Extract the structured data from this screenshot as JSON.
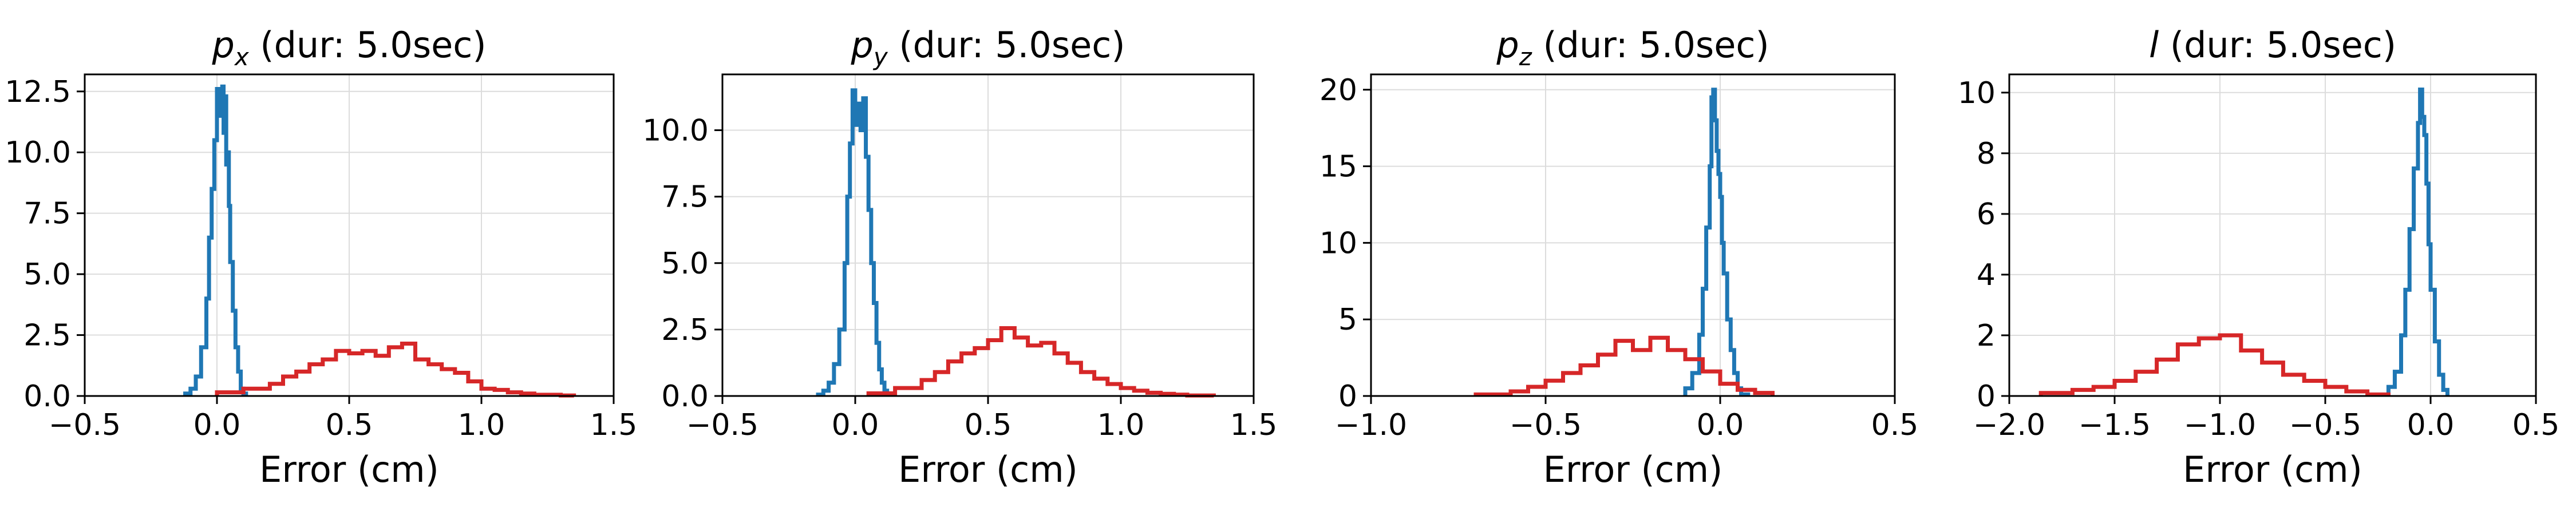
{
  "chart_data": [
    {
      "type": "histogram",
      "title_var": "p",
      "title_sub": "x",
      "title_rest": " (dur: 5.0sec)",
      "xlabel": "Error (cm)",
      "ylabel": "",
      "xlim": [
        -0.5,
        1.5
      ],
      "ylim": [
        0,
        13.2
      ],
      "xticks": [
        -0.5,
        0.0,
        0.5,
        1.0,
        1.5
      ],
      "xtick_labels": [
        "−0.5",
        "0.0",
        "0.5",
        "1.0",
        "1.5"
      ],
      "yticks": [
        0,
        2.5,
        5.0,
        7.5,
        10.0,
        12.5
      ],
      "ytick_labels": [
        "0.0",
        "2.5",
        "5.0",
        "7.5",
        "10.0",
        "12.5"
      ],
      "grid": true,
      "series": [
        {
          "color": "#1f77b4",
          "edges": [
            -0.12,
            -0.1,
            -0.08,
            -0.06,
            -0.04,
            -0.03,
            -0.02,
            -0.01,
            0.0,
            0.01,
            0.02,
            0.025,
            0.03,
            0.035,
            0.04,
            0.045,
            0.05,
            0.06,
            0.07,
            0.08,
            0.09,
            0.1,
            0.11
          ],
          "values": [
            0.1,
            0.3,
            0.8,
            2.0,
            4.0,
            6.5,
            8.5,
            10.5,
            12.6,
            11.5,
            12.7,
            10.8,
            12.3,
            9.5,
            10.0,
            7.8,
            5.5,
            3.5,
            2.0,
            1.0,
            0.3,
            0.1
          ]
        },
        {
          "color": "#d62728",
          "edges": [
            0.0,
            0.1,
            0.2,
            0.25,
            0.3,
            0.35,
            0.4,
            0.45,
            0.5,
            0.55,
            0.6,
            0.65,
            0.7,
            0.75,
            0.8,
            0.85,
            0.9,
            0.95,
            1.0,
            1.05,
            1.1,
            1.15,
            1.2,
            1.3,
            1.35
          ],
          "values": [
            0.15,
            0.3,
            0.5,
            0.8,
            1.0,
            1.3,
            1.5,
            1.85,
            1.75,
            1.85,
            1.65,
            2.0,
            2.15,
            1.5,
            1.3,
            1.1,
            0.95,
            0.6,
            0.3,
            0.25,
            0.15,
            0.1,
            0.05,
            0.02
          ]
        }
      ]
    },
    {
      "type": "histogram",
      "title_var": "p",
      "title_sub": "y",
      "title_rest": " (dur: 5.0sec)",
      "xlabel": "Error (cm)",
      "ylabel": "",
      "xlim": [
        -0.5,
        1.5
      ],
      "ylim": [
        0,
        12.1
      ],
      "xticks": [
        -0.5,
        0.0,
        0.5,
        1.0,
        1.5
      ],
      "xtick_labels": [
        "−0.5",
        "0.0",
        "0.5",
        "1.0",
        "1.5"
      ],
      "yticks": [
        0,
        2.5,
        5.0,
        7.5,
        10.0
      ],
      "ytick_labels": [
        "0.0",
        "2.5",
        "5.0",
        "7.5",
        "10.0"
      ],
      "grid": true,
      "series": [
        {
          "color": "#1f77b4",
          "edges": [
            -0.14,
            -0.12,
            -0.1,
            -0.08,
            -0.06,
            -0.04,
            -0.03,
            -0.02,
            -0.01,
            0.0,
            0.01,
            0.02,
            0.03,
            0.04,
            0.05,
            0.06,
            0.07,
            0.08,
            0.09,
            0.1,
            0.11,
            0.12,
            0.14
          ],
          "values": [
            0.05,
            0.2,
            0.5,
            1.2,
            2.5,
            5.0,
            7.5,
            9.5,
            11.5,
            10.2,
            11.0,
            10.0,
            11.2,
            9.0,
            7.0,
            5.0,
            3.5,
            2.0,
            1.0,
            0.5,
            0.2,
            0.05
          ]
        },
        {
          "color": "#d62728",
          "edges": [
            0.05,
            0.15,
            0.25,
            0.3,
            0.35,
            0.4,
            0.45,
            0.5,
            0.55,
            0.6,
            0.65,
            0.7,
            0.75,
            0.8,
            0.85,
            0.9,
            0.95,
            1.0,
            1.05,
            1.1,
            1.15,
            1.2,
            1.25,
            1.35
          ],
          "values": [
            0.1,
            0.3,
            0.6,
            0.9,
            1.3,
            1.6,
            1.8,
            2.1,
            2.55,
            2.2,
            1.9,
            2.0,
            1.6,
            1.25,
            0.9,
            0.65,
            0.45,
            0.3,
            0.2,
            0.12,
            0.08,
            0.05,
            0.02
          ]
        }
      ]
    },
    {
      "type": "histogram",
      "title_var": "p",
      "title_sub": "z",
      "title_rest": " (dur: 5.0sec)",
      "xlabel": "Error (cm)",
      "ylabel": "",
      "xlim": [
        -1.0,
        0.5
      ],
      "ylim": [
        0,
        21
      ],
      "xticks": [
        -1.0,
        -0.5,
        0.0,
        0.5
      ],
      "xtick_labels": [
        "−1.0",
        "−0.5",
        "0.0",
        "0.5"
      ],
      "yticks": [
        0,
        5,
        10,
        15,
        20
      ],
      "ytick_labels": [
        "0",
        "5",
        "10",
        "15",
        "20"
      ],
      "grid": true,
      "series": [
        {
          "color": "#1f77b4",
          "edges": [
            -0.1,
            -0.08,
            -0.06,
            -0.05,
            -0.04,
            -0.03,
            -0.025,
            -0.02,
            -0.015,
            -0.01,
            -0.005,
            0.0,
            0.005,
            0.01,
            0.02,
            0.03,
            0.04,
            0.05,
            0.06,
            0.08
          ],
          "values": [
            0.5,
            1.5,
            4.0,
            7.0,
            11.0,
            15.0,
            19.5,
            20.0,
            18.0,
            16.0,
            14.5,
            13.0,
            10.0,
            8.0,
            5.0,
            3.0,
            1.5,
            0.5,
            0.1
          ]
        },
        {
          "color": "#d62728",
          "edges": [
            -0.7,
            -0.6,
            -0.55,
            -0.5,
            -0.45,
            -0.4,
            -0.35,
            -0.3,
            -0.25,
            -0.2,
            -0.15,
            -0.1,
            -0.05,
            0.0,
            0.05,
            0.1,
            0.15
          ],
          "values": [
            0.1,
            0.3,
            0.6,
            1.0,
            1.5,
            2.0,
            2.7,
            3.6,
            3.0,
            3.8,
            3.0,
            2.4,
            1.6,
            0.8,
            0.4,
            0.2
          ]
        }
      ]
    },
    {
      "type": "histogram",
      "title_var": "l",
      "title_sub": "",
      "title_rest": " (dur: 5.0sec)",
      "xlabel": "Error (cm)",
      "ylabel": "",
      "xlim": [
        -2.0,
        0.5
      ],
      "ylim": [
        0,
        10.6
      ],
      "xticks": [
        -2.0,
        -1.5,
        -1.0,
        -0.5,
        0.0,
        0.5
      ],
      "xtick_labels": [
        "−2.0",
        "−1.5",
        "−1.0",
        "−0.5",
        "0.0",
        "0.5"
      ],
      "yticks": [
        0,
        2,
        4,
        6,
        8,
        10
      ],
      "ytick_labels": [
        "0",
        "2",
        "4",
        "6",
        "8",
        "10"
      ],
      "grid": true,
      "series": [
        {
          "color": "#1f77b4",
          "edges": [
            -0.2,
            -0.17,
            -0.14,
            -0.12,
            -0.1,
            -0.08,
            -0.06,
            -0.05,
            -0.04,
            -0.03,
            -0.02,
            -0.01,
            0.0,
            0.02,
            0.04,
            0.06,
            0.08
          ],
          "values": [
            0.3,
            0.8,
            2.0,
            3.5,
            5.5,
            7.5,
            9.0,
            10.1,
            9.2,
            8.6,
            7.0,
            5.0,
            3.5,
            1.8,
            0.7,
            0.2
          ]
        },
        {
          "color": "#d62728",
          "edges": [
            -1.85,
            -1.7,
            -1.6,
            -1.5,
            -1.4,
            -1.3,
            -1.2,
            -1.1,
            -1.0,
            -0.9,
            -0.8,
            -0.7,
            -0.6,
            -0.5,
            -0.4,
            -0.3,
            -0.2
          ],
          "values": [
            0.1,
            0.2,
            0.3,
            0.5,
            0.8,
            1.2,
            1.7,
            1.9,
            2.0,
            1.5,
            1.1,
            0.7,
            0.5,
            0.3,
            0.15,
            0.05
          ]
        }
      ]
    }
  ]
}
